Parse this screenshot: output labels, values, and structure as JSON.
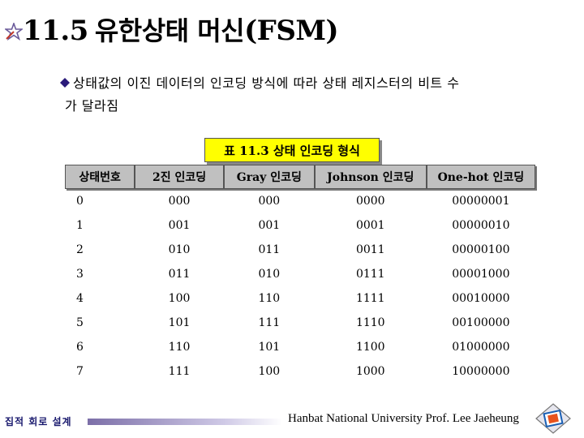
{
  "slide": {
    "title_number": "11.5",
    "title_korean": "유한상태 머신",
    "title_abbr": "(FSM)"
  },
  "bullet": {
    "line1": "상태값의 이진 데이터의 인코딩 방식에 따라 상태 레지스터의 비트 수",
    "line2": "가 달라짐"
  },
  "table": {
    "caption": "표 11.3 상태 인코딩 형식",
    "headers": [
      "상태번호",
      "2진 인코딩",
      "Gray 인코딩",
      "Johnson 인코딩",
      "One-hot 인코딩"
    ],
    "rows": [
      [
        "0",
        "000",
        "000",
        "0000",
        "00000001"
      ],
      [
        "1",
        "001",
        "001",
        "0001",
        "00000010"
      ],
      [
        "2",
        "010",
        "011",
        "0011",
        "00000100"
      ],
      [
        "3",
        "011",
        "010",
        "0111",
        "00001000"
      ],
      [
        "4",
        "100",
        "110",
        "1111",
        "00010000"
      ],
      [
        "5",
        "101",
        "111",
        "1110",
        "00100000"
      ],
      [
        "6",
        "110",
        "101",
        "1100",
        "01000000"
      ],
      [
        "7",
        "111",
        "100",
        "1000",
        "10000000"
      ]
    ]
  },
  "footer": {
    "left": "집적 회로 설계",
    "right": "Hanbat National University Prof. Lee Jaeheung"
  }
}
